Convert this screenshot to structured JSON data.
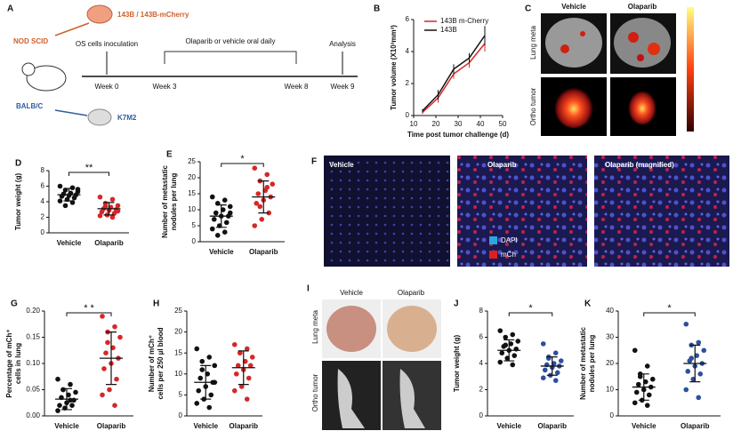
{
  "panel_a": {
    "letter": "A",
    "cells_top": "143B / 143B-mCherry",
    "strain_top": "NOD SCID",
    "inoculation": "OS cells inoculation",
    "treatment": "Olaparib or vehicle oral daily",
    "analysis": "Analysis",
    "weeks": [
      "Week 0",
      "Week 3",
      "Week 8",
      "Week 9"
    ],
    "strain_bottom": "BALB/C",
    "cells_bottom": "K7M2"
  },
  "panel_c": {
    "letter": "C",
    "columns": [
      "Vehicle",
      "Olaparib"
    ],
    "rows": [
      "Lung meta",
      "Ortho tumor"
    ]
  },
  "panel_f": {
    "letter": "F",
    "images": [
      "Vehicle",
      "Olaparib",
      "Olaparib (magnified)"
    ],
    "legend": [
      "DAPI",
      "mCh"
    ]
  },
  "panel_i": {
    "letter": "I",
    "columns": [
      "Vehicle",
      "Olaparib"
    ],
    "rows": [
      "Lung meta",
      "Ortho tumor"
    ]
  },
  "chart_data": [
    {
      "type": "line",
      "panel": "B",
      "xlabel": "Time post tumor challenge (d)",
      "ylabel": "Tumor volume (X10³mm³)",
      "x": [
        14,
        21,
        28,
        35,
        42
      ],
      "xlim": [
        10,
        50
      ],
      "xticks": [
        10,
        20,
        30,
        40,
        50
      ],
      "ylim": [
        0,
        6
      ],
      "yticks": [
        0,
        2,
        4,
        6
      ],
      "series": [
        {
          "name": "143B m-Cherry",
          "color": "#d62728",
          "values": [
            0.2,
            1.1,
            2.6,
            3.3,
            4.5
          ],
          "errors": [
            0.1,
            0.3,
            0.3,
            0.3,
            0.5
          ]
        },
        {
          "name": "143B",
          "color": "#111111",
          "values": [
            0.3,
            1.3,
            2.9,
            3.6,
            5.0
          ],
          "errors": [
            0.1,
            0.3,
            0.3,
            0.3,
            0.6
          ]
        }
      ]
    },
    {
      "type": "dotplot",
      "panel": "D",
      "ylabel": [
        "Tumor weight (g)"
      ],
      "ylim": [
        0,
        8
      ],
      "yticks": [
        0,
        2,
        4,
        6,
        8
      ],
      "significance": "**",
      "groups": [
        {
          "name": "Vehicle",
          "color": "#111111",
          "values": [
            6.0,
            5.8,
            5.5,
            5.3,
            5.1,
            5.0,
            4.9,
            4.8,
            4.7,
            4.5,
            4.3,
            4.1,
            3.9,
            3.5,
            5.6
          ],
          "mean": 4.9,
          "sd": 0.8
        },
        {
          "name": "Olaparib",
          "color": "#d62728",
          "values": [
            4.6,
            4.3,
            3.8,
            3.5,
            3.3,
            3.1,
            3.0,
            2.9,
            2.7,
            2.5,
            2.3,
            2.2,
            2.0,
            3.4,
            2.8
          ],
          "mean": 3.1,
          "sd": 0.8
        }
      ]
    },
    {
      "type": "dotplot",
      "panel": "E",
      "ylabel": [
        "Number of metastatic",
        "nodules per lung"
      ],
      "ylim": [
        0,
        25
      ],
      "yticks": [
        0,
        5,
        10,
        15,
        20,
        25
      ],
      "significance": "*",
      "groups": [
        {
          "name": "Vehicle",
          "color": "#111111",
          "values": [
            14,
            13,
            12,
            11,
            10,
            9,
            8,
            8,
            7,
            6,
            5,
            4,
            3,
            2,
            9
          ],
          "mean": 8,
          "sd": 3.5
        },
        {
          "name": "Olaparib",
          "color": "#d62728",
          "values": [
            23,
            21,
            19,
            18,
            16,
            15,
            14,
            13,
            12,
            9,
            7,
            5,
            17,
            11
          ],
          "mean": 14,
          "sd": 5
        }
      ]
    },
    {
      "type": "dotplot",
      "panel": "G",
      "ylabel": [
        "Percentage of mCh⁺",
        "cells in lung"
      ],
      "ylim": [
        0,
        0.2
      ],
      "yticks": [
        {
          "value": 0,
          "label": "0.00"
        },
        {
          "value": 0.05,
          "label": "0.05"
        },
        {
          "value": 0.1,
          "label": "0.10"
        },
        {
          "value": 0.15,
          "label": "0.15"
        },
        {
          "value": 0.2,
          "label": "0.20"
        }
      ],
      "significance": "* *",
      "groups": [
        {
          "name": "Vehicle",
          "color": "#111111",
          "values": [
            0.07,
            0.06,
            0.05,
            0.045,
            0.04,
            0.035,
            0.03,
            0.025,
            0.02,
            0.02,
            0.015,
            0.01,
            0.03,
            0.05
          ],
          "mean": 0.032,
          "sd": 0.02
        },
        {
          "name": "Olaparib",
          "color": "#d62728",
          "values": [
            0.19,
            0.17,
            0.16,
            0.15,
            0.13,
            0.12,
            0.11,
            0.1,
            0.09,
            0.07,
            0.05,
            0.04,
            0.02,
            0.14
          ],
          "mean": 0.11,
          "sd": 0.05
        }
      ]
    },
    {
      "type": "dotplot",
      "panel": "H",
      "ylabel": [
        "Number of mCh⁺",
        "cells per 250 µl blood"
      ],
      "ylim": [
        0,
        25
      ],
      "yticks": [
        0,
        5,
        10,
        15,
        20,
        25
      ],
      "groups": [
        {
          "name": "Vehicle",
          "color": "#111111",
          "values": [
            16,
            14,
            13,
            12,
            10,
            9,
            8,
            7,
            6,
            5,
            4,
            3,
            2,
            11,
            8
          ],
          "mean": 8,
          "sd": 4
        },
        {
          "name": "Olaparib",
          "color": "#d62728",
          "values": [
            17,
            16,
            15,
            14,
            13,
            12,
            12,
            11,
            10,
            9,
            7,
            6,
            4,
            15
          ],
          "mean": 11.5,
          "sd": 4
        }
      ]
    },
    {
      "type": "dotplot",
      "panel": "J",
      "ylabel": [
        "Tumor weight (g)"
      ],
      "ylim": [
        0,
        8
      ],
      "yticks": [
        0,
        2,
        4,
        6,
        8
      ],
      "significance": "*",
      "groups": [
        {
          "name": "Vehicle",
          "color": "#111111",
          "values": [
            6.5,
            6.2,
            6.0,
            5.7,
            5.5,
            5.3,
            5.1,
            5.0,
            4.8,
            4.6,
            4.4,
            4.1,
            3.9,
            5.4
          ],
          "mean": 5.0,
          "sd": 0.8
        },
        {
          "name": "Olaparib",
          "color": "#2c4f9e",
          "values": [
            5.5,
            4.8,
            4.5,
            4.2,
            4.0,
            3.9,
            3.8,
            3.7,
            3.5,
            3.3,
            3.1,
            2.9,
            2.7,
            4.4
          ],
          "mean": 3.8,
          "sd": 0.7
        }
      ]
    },
    {
      "type": "dotplot",
      "panel": "K",
      "ylabel": [
        "Number of metastatic",
        "nodules per lung"
      ],
      "ylim": [
        0,
        40
      ],
      "yticks": [
        0,
        10,
        20,
        30,
        40
      ],
      "significance": "*",
      "groups": [
        {
          "name": "Vehicle",
          "color": "#111111",
          "values": [
            25,
            19,
            16,
            14,
            13,
            12,
            11,
            10,
            9,
            8,
            6,
            5,
            4,
            15
          ],
          "mean": 11,
          "sd": 5
        },
        {
          "name": "Olaparib",
          "color": "#2c4f9e",
          "values": [
            35,
            28,
            27,
            25,
            23,
            21,
            20,
            19,
            17,
            16,
            14,
            10,
            7,
            22
          ],
          "mean": 20,
          "sd": 7
        }
      ]
    }
  ]
}
